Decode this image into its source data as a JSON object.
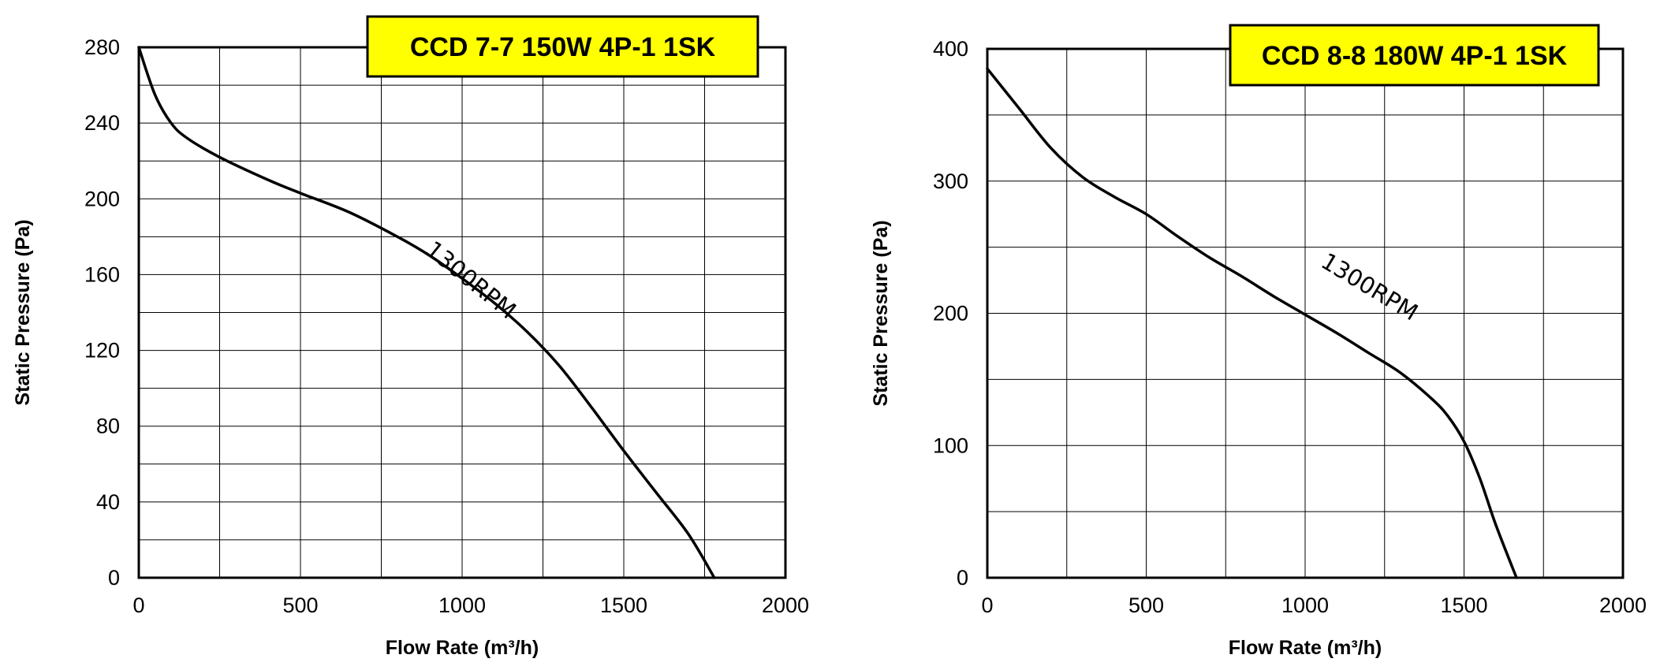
{
  "chart_data": [
    {
      "type": "line",
      "title": "CCD 7-7 150W 4P-1 1SK",
      "xlabel": "Flow Rate (m³/h)",
      "ylabel": "Static Pressure (Pa)",
      "xlim": [
        0,
        2000
      ],
      "ylim": [
        0,
        280
      ],
      "xticks": [
        0,
        500,
        1000,
        1500,
        2000
      ],
      "yticks": [
        0,
        40,
        80,
        120,
        160,
        200,
        240,
        280
      ],
      "grid": true,
      "title_box_color": "#ffff00",
      "series": [
        {
          "name": "1300RPM",
          "x": [
            0,
            50,
            100,
            150,
            250,
            400,
            500,
            650,
            800,
            900,
            1000,
            1100,
            1200,
            1300,
            1400,
            1500,
            1600,
            1700,
            1780
          ],
          "y": [
            280,
            255,
            240,
            232,
            222,
            210,
            203,
            193,
            180,
            170,
            158,
            145,
            130,
            112,
            90,
            67,
            45,
            23,
            0
          ]
        }
      ]
    },
    {
      "type": "line",
      "title": "CCD 8-8 180W 4P-1 1SK",
      "xlabel": "Flow Rate (m³/h)",
      "ylabel": "Static Pressure (Pa)",
      "xlim": [
        0,
        2000
      ],
      "ylim": [
        0,
        400
      ],
      "xticks": [
        0,
        500,
        1000,
        1500,
        2000
      ],
      "yticks": [
        0,
        100,
        200,
        300,
        400
      ],
      "grid": true,
      "title_box_color": "#ffff00",
      "series": [
        {
          "name": "1300RPM",
          "x": [
            0,
            100,
            200,
            300,
            400,
            500,
            600,
            700,
            800,
            900,
            1000,
            1100,
            1200,
            1300,
            1400,
            1450,
            1500,
            1550,
            1600,
            1665
          ],
          "y": [
            385,
            355,
            325,
            303,
            288,
            275,
            258,
            242,
            228,
            213,
            199,
            185,
            170,
            155,
            135,
            122,
            103,
            75,
            40,
            0
          ]
        }
      ]
    }
  ]
}
